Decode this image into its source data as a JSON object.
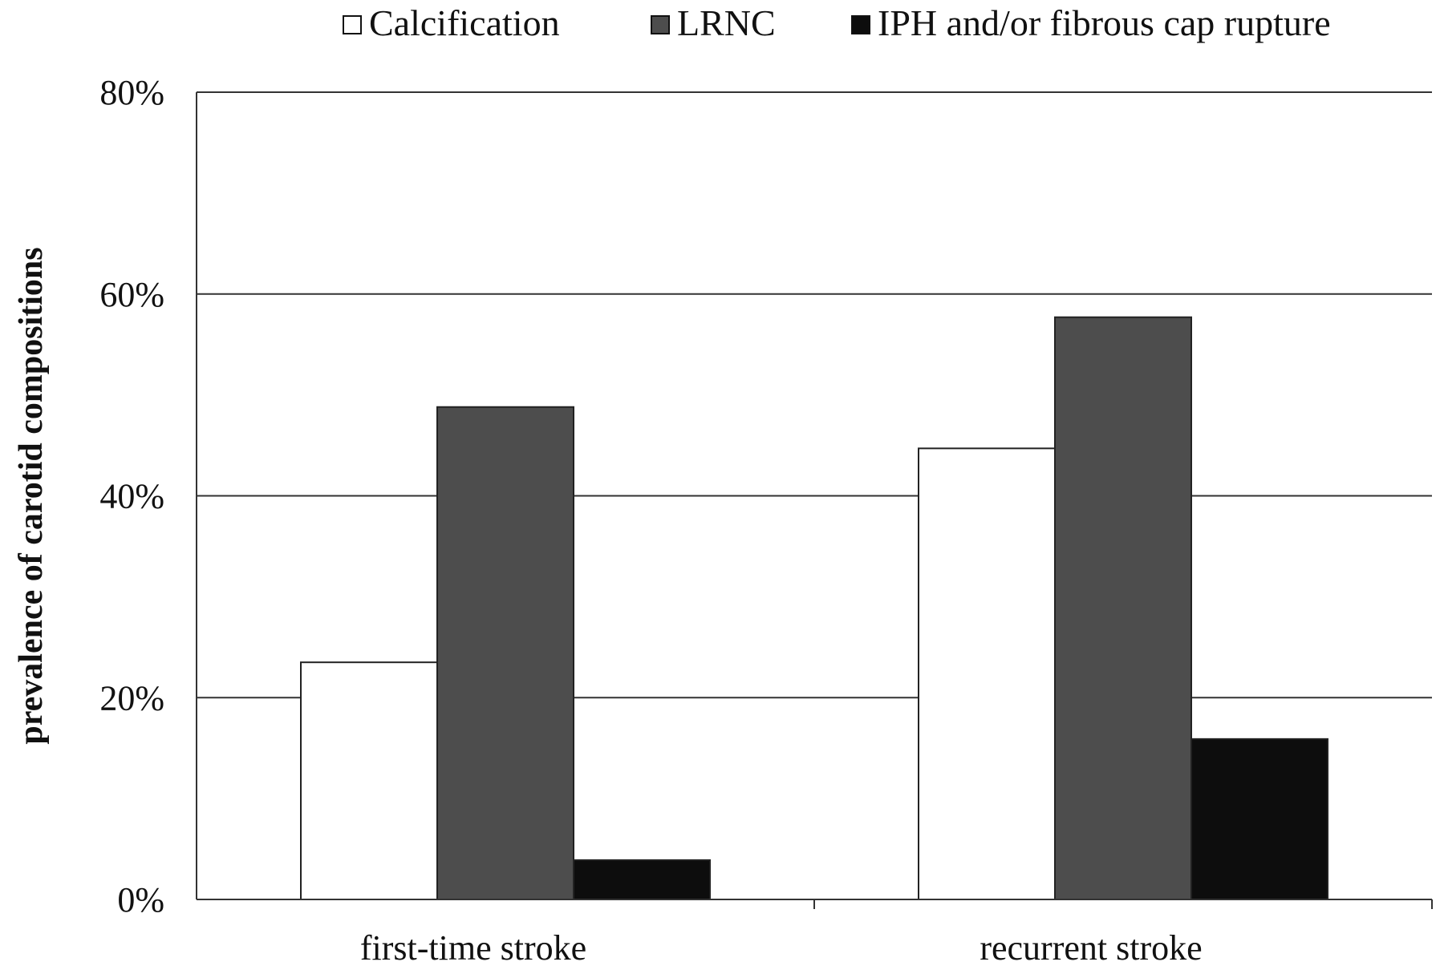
{
  "chart_data": {
    "type": "bar",
    "title": "",
    "xlabel": "",
    "ylabel": "prevalence of carotid compositions",
    "categories": [
      "first-time stroke",
      "recurrent stroke"
    ],
    "series": [
      {
        "name": "Calcification",
        "values": [
          23.5,
          44.7
        ],
        "color": "#ffffff"
      },
      {
        "name": "LRNC",
        "values": [
          48.8,
          57.7
        ],
        "color": "#4d4d4d"
      },
      {
        "name": "IPH and/or fibrous cap rupture",
        "values": [
          3.9,
          15.9
        ],
        "color": "#0d0d0d"
      }
    ],
    "ylim": [
      0,
      80
    ],
    "yticks": [
      0,
      20,
      40,
      60,
      80
    ],
    "ytick_labels": [
      "0%",
      "20%",
      "40%",
      "60%",
      "80%"
    ],
    "value_unit": "%",
    "grid": true,
    "legend_position": "top",
    "colors": {
      "axis": "#333333",
      "grid": "#333333",
      "bar_edge": "#222222"
    }
  }
}
